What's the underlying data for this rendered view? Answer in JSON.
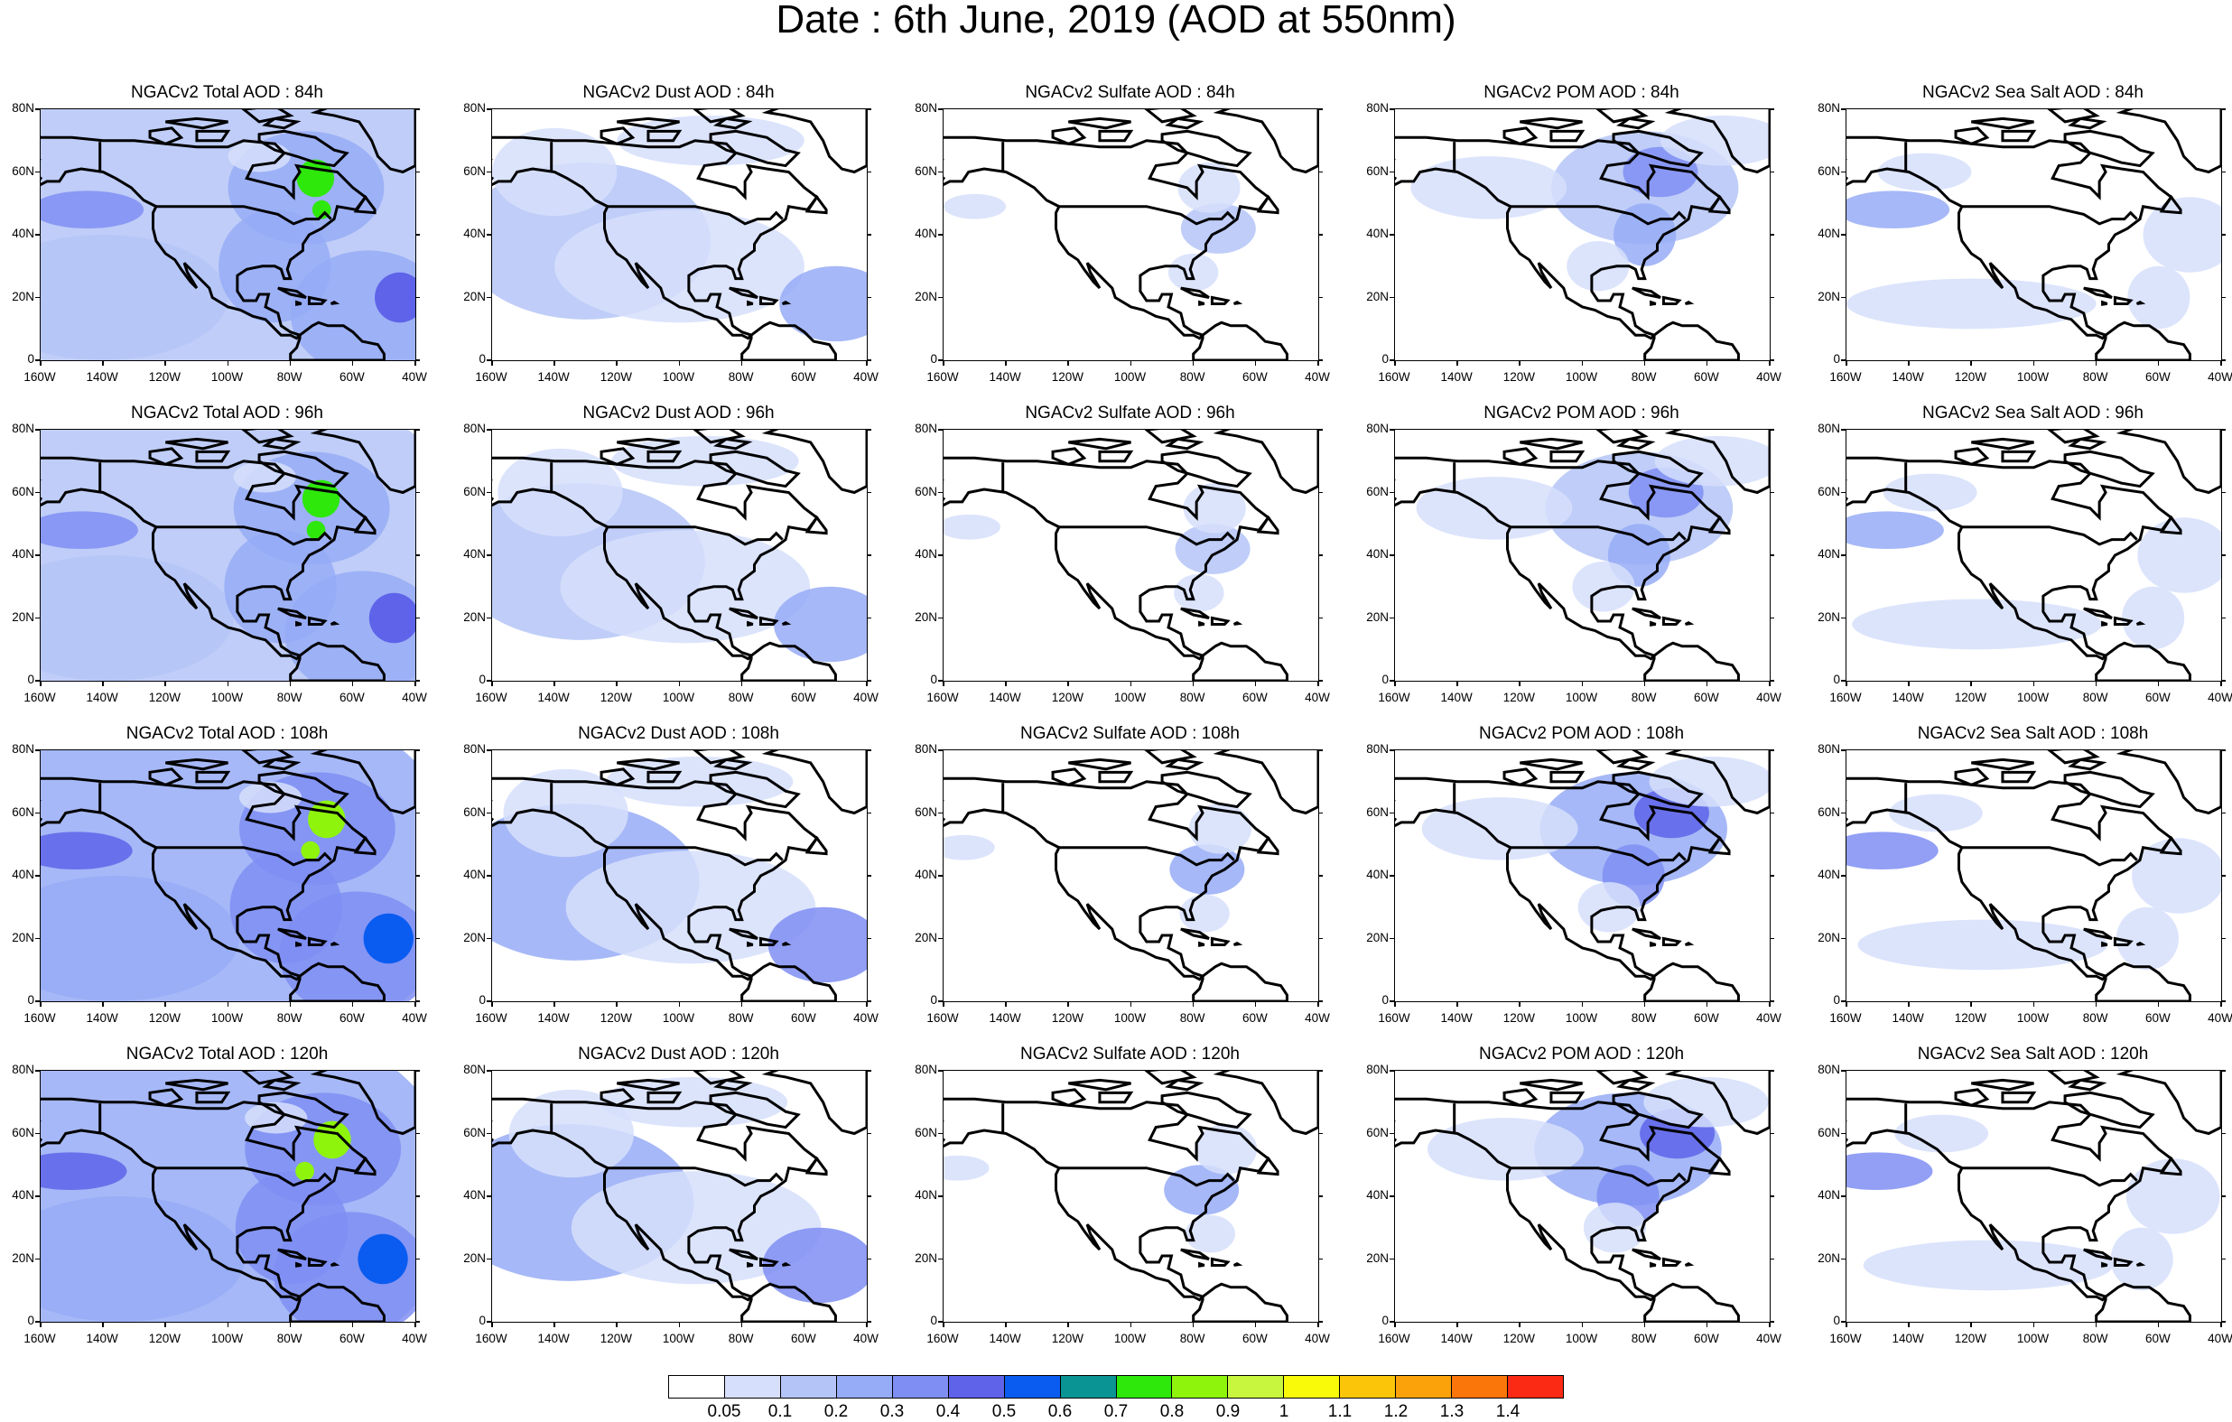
{
  "title": "Date : 6th June, 2019 (AOD at 550nm)",
  "lat_ticks": [
    "80N",
    "60N",
    "40N",
    "20N",
    "0"
  ],
  "lon_ticks": [
    "160W",
    "140W",
    "120W",
    "100W",
    "80W",
    "60W",
    "40W"
  ],
  "map_extent": {
    "lon": [
      -160,
      -40
    ],
    "lat": [
      0,
      80
    ]
  },
  "panels": [
    [
      "NGACv2 Total AOD : 84h",
      "NGACv2 Dust AOD : 84h",
      "NGACv2 Sulfate AOD : 84h",
      "NGACv2 POM AOD : 84h",
      "NGACv2 Sea Salt AOD : 84h"
    ],
    [
      "NGACv2 Total AOD : 96h",
      "NGACv2 Dust AOD : 96h",
      "NGACv2 Sulfate AOD : 96h",
      "NGACv2 POM AOD : 96h",
      "NGACv2 Sea Salt AOD : 96h"
    ],
    [
      "NGACv2 Total AOD : 108h",
      "NGACv2 Dust AOD : 108h",
      "NGACv2 Sulfate AOD : 108h",
      "NGACv2 POM AOD : 108h",
      "NGACv2 Sea Salt AOD : 108h"
    ],
    [
      "NGACv2 Total AOD : 120h",
      "NGACv2 Dust AOD : 120h",
      "NGACv2 Sulfate AOD : 120h",
      "NGACv2 POM AOD : 120h",
      "NGACv2 Sea Salt  AOD : 120h"
    ]
  ],
  "colorbar": {
    "labels": [
      "0.05",
      "0.1",
      "0.2",
      "0.3",
      "0.4",
      "0.5",
      "0.6",
      "0.7",
      "0.8",
      "0.9",
      "1",
      "1.1",
      "1.2",
      "1.3",
      "1.4"
    ],
    "colors": [
      "#ffffff",
      "#d6dffb",
      "#b4c4f7",
      "#96acf6",
      "#7f8ef3",
      "#5e63e9",
      "#0a5cf0",
      "#0a9494",
      "#2ee70b",
      "#8ef40c",
      "#c8f53d",
      "#f9f90a",
      "#fbc60a",
      "#fba20a",
      "#fb760a",
      "#fb2a14"
    ]
  }
}
